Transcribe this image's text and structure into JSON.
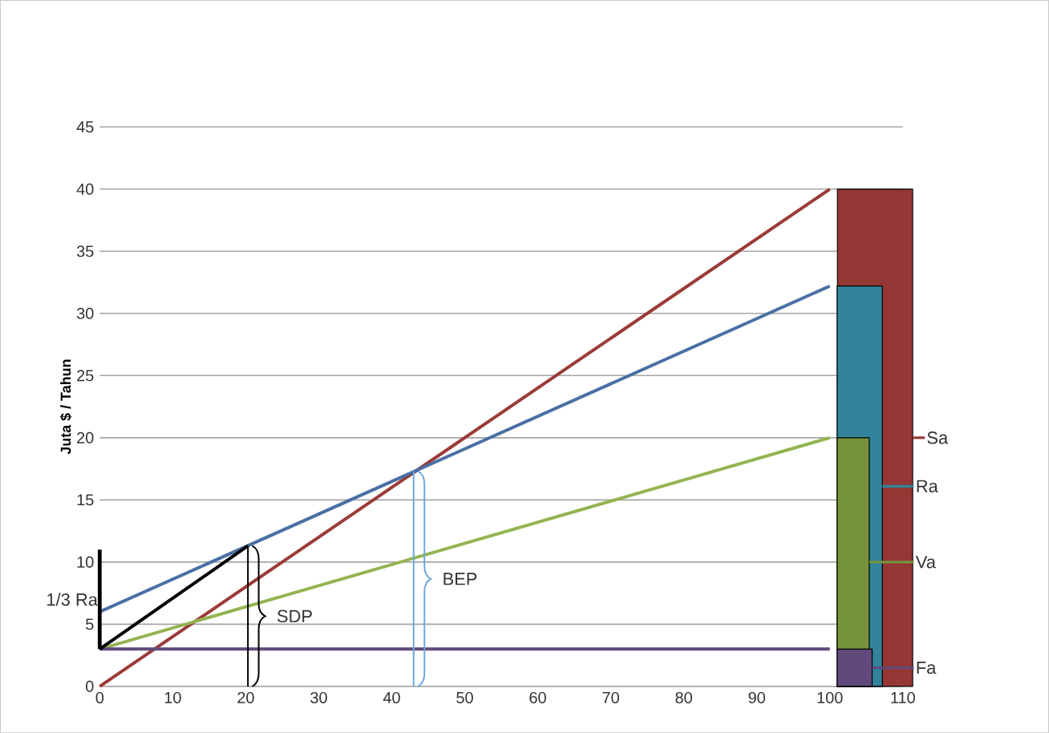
{
  "chart_data": {
    "type": "line",
    "ylabel": "Juta $ / Tahun",
    "xlim": [
      0,
      110
    ],
    "ylim": [
      0,
      45
    ],
    "xticks": [
      0,
      10,
      20,
      30,
      40,
      50,
      60,
      70,
      80,
      90,
      100,
      110
    ],
    "yticks": [
      0,
      5,
      10,
      15,
      20,
      25,
      30,
      35,
      40,
      45
    ],
    "grid": "y",
    "legend": "right",
    "marker": "none",
    "line_style": "solid",
    "series": [
      {
        "color": "#9a3b38",
        "x": [
          0,
          100
        ],
        "values": [
          0,
          40
        ]
      },
      {
        "color": "#4a6fa5",
        "x": [
          0,
          100
        ],
        "values": [
          6,
          32.2
        ]
      },
      {
        "color": "#92b550",
        "x": [
          0,
          100
        ],
        "values": [
          3,
          20
        ]
      },
      {
        "color": "#604a7b",
        "x": [
          0,
          100
        ],
        "values": [
          3,
          3
        ]
      },
      {
        "color": "#000000",
        "x": [
          0,
          20.3
        ],
        "values": [
          3,
          11.3
        ]
      },
      {
        "name": "1/3 Ra",
        "color": "#000000",
        "x": [
          0,
          0
        ],
        "values": [
          3,
          11
        ]
      },
      {
        "name": "SDP",
        "color": "#000000",
        "x": [
          20.3,
          20.3
        ],
        "values": [
          0,
          11.3
        ]
      },
      {
        "name": "BEP",
        "color": "#6fa8dc",
        "x": [
          43,
          43
        ],
        "values": [
          0,
          17.3
        ]
      },
      {
        "type": "bar",
        "name": "Sa",
        "color": "#953735",
        "x": [
          106.2
        ],
        "values": [
          40
        ]
      },
      {
        "type": "bar",
        "name": "Ra",
        "color": "#31849b",
        "x": [
          104.1
        ],
        "values": [
          32.2
        ]
      },
      {
        "type": "bar",
        "name": "Va",
        "color": "#77933c",
        "x": [
          103.2
        ],
        "values": [
          20
        ]
      },
      {
        "type": "bar",
        "name": "Fa",
        "color": "#604a7b",
        "x": [
          103.4
        ],
        "values": [
          3
        ]
      }
    ]
  }
}
